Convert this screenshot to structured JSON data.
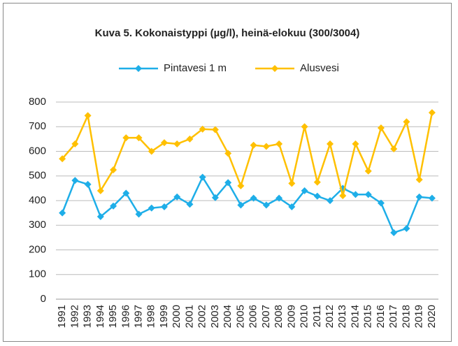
{
  "chart_data": {
    "type": "line",
    "title": "Kuva 5. Kokonaistyppi (µg/l), heinä-elokuu (300/3004)",
    "categories": [
      "1991",
      "1992",
      "1993",
      "1994",
      "1995",
      "1996",
      "1997",
      "1998",
      "1999",
      "2000",
      "2001",
      "2002",
      "2003",
      "2004",
      "2005",
      "2006",
      "2007",
      "2008",
      "2009",
      "2010",
      "2011",
      "2012",
      "2013",
      "2014",
      "2015",
      "2016",
      "2017",
      "2018",
      "2019",
      "2020"
    ],
    "series": [
      {
        "name": "Pintavesi 1 m",
        "color": "#1eaee8",
        "values": [
          350,
          482,
          466,
          335,
          378,
          430,
          345,
          370,
          375,
          415,
          385,
          495,
          412,
          473,
          382,
          410,
          382,
          410,
          375,
          440,
          418,
          400,
          450,
          425,
          425,
          390,
          270,
          287,
          415,
          410
        ]
      },
      {
        "name": "Alusvesi",
        "color": "#ffc000",
        "values": [
          570,
          630,
          745,
          440,
          525,
          655,
          655,
          600,
          635,
          630,
          650,
          690,
          688,
          592,
          460,
          625,
          620,
          630,
          470,
          700,
          475,
          630,
          420,
          630,
          520,
          695,
          610,
          720,
          485,
          757
        ]
      }
    ],
    "ylim": [
      0,
      800
    ],
    "yticks": [
      0,
      100,
      200,
      300,
      400,
      500,
      600,
      700,
      800
    ],
    "grid": true,
    "legend": "top"
  }
}
